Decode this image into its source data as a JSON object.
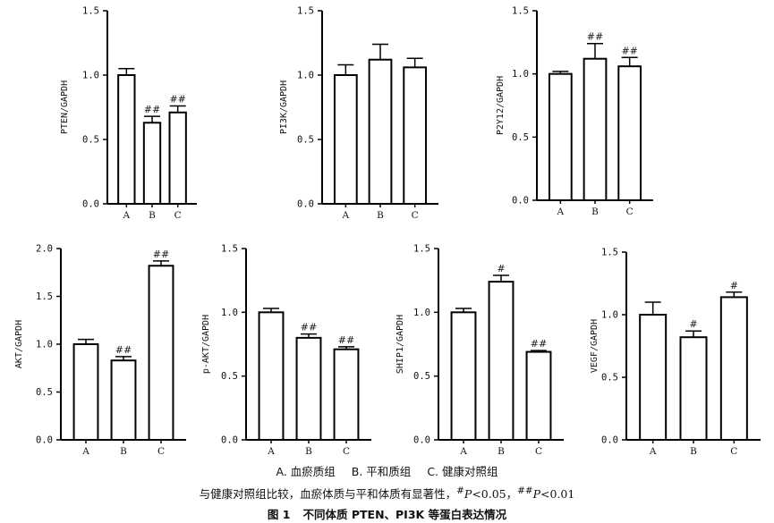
{
  "chart_data": [
    {
      "type": "bar",
      "ylabel": "PTEN/GAPDH",
      "categories": [
        "A",
        "B",
        "C"
      ],
      "ylim": [
        0,
        1.5
      ],
      "yticks": [
        "0.0",
        "0.5",
        "1.0",
        "1.5"
      ],
      "values": [
        1.0,
        0.63,
        0.71
      ],
      "errors": [
        0.05,
        0.05,
        0.05
      ],
      "annotations": [
        "",
        "##",
        "##"
      ]
    },
    {
      "type": "bar",
      "ylabel": "PI3K/GAPDH",
      "categories": [
        "A",
        "B",
        "C"
      ],
      "ylim": [
        0,
        1.5
      ],
      "yticks": [
        "0.0",
        "0.5",
        "1.0",
        "1.5"
      ],
      "values": [
        1.0,
        1.12,
        1.06
      ],
      "errors": [
        0.08,
        0.12,
        0.07
      ],
      "annotations": [
        "",
        "",
        ""
      ]
    },
    {
      "type": "bar",
      "ylabel": "P2Y12/GAPDH",
      "categories": [
        "A",
        "B",
        "C"
      ],
      "ylim": [
        0,
        1.5
      ],
      "yticks": [
        "0.0",
        "0.5",
        "1.0",
        "1.5"
      ],
      "values": [
        1.0,
        1.12,
        1.06
      ],
      "errors": [
        0.02,
        0.12,
        0.07
      ],
      "annotations": [
        "",
        "##",
        "##"
      ]
    },
    {
      "type": "bar",
      "ylabel": "AKT/GAPDH",
      "categories": [
        "A",
        "B",
        "C"
      ],
      "ylim": [
        0,
        2.0
      ],
      "yticks": [
        "0.0",
        "0.5",
        "1.0",
        "1.5",
        "2.0"
      ],
      "values": [
        1.0,
        0.83,
        1.82
      ],
      "errors": [
        0.05,
        0.04,
        0.05
      ],
      "annotations": [
        "",
        "##",
        "##"
      ]
    },
    {
      "type": "bar",
      "ylabel": "p-AKT/GAPDH",
      "categories": [
        "A",
        "B",
        "C"
      ],
      "ylim": [
        0,
        1.5
      ],
      "yticks": [
        "0.0",
        "0.5",
        "1.0",
        "1.5"
      ],
      "values": [
        1.0,
        0.8,
        0.71
      ],
      "errors": [
        0.03,
        0.03,
        0.02
      ],
      "annotations": [
        "",
        "##",
        "##"
      ]
    },
    {
      "type": "bar",
      "ylabel": "SHIP1/GAPDH",
      "categories": [
        "A",
        "B",
        "C"
      ],
      "ylim": [
        0,
        1.5
      ],
      "yticks": [
        "0.0",
        "0.5",
        "1.0",
        "1.5"
      ],
      "values": [
        1.0,
        1.24,
        0.69
      ],
      "errors": [
        0.03,
        0.05,
        0.01
      ],
      "annotations": [
        "",
        "#",
        "##"
      ]
    },
    {
      "type": "bar",
      "ylabel": "VEGF/GAPDH",
      "categories": [
        "A",
        "B",
        "C"
      ],
      "ylim": [
        0,
        1.5
      ],
      "yticks": [
        "0.0",
        "0.5",
        "1.0",
        "1.5"
      ],
      "values": [
        1.0,
        0.82,
        1.14
      ],
      "errors": [
        0.1,
        0.05,
        0.04
      ],
      "annotations": [
        "",
        "#",
        "#"
      ]
    }
  ],
  "legend": {
    "a": "A. 血瘀质组",
    "b": "B. 平和质组",
    "c": "C. 健康对照组"
  },
  "note": {
    "main": "与健康对照组比较，血瘀体质与平和体质有显著性，",
    "sig1_mark": "#",
    "p_symbol": "P",
    "sig1_text": "<0.05，",
    "sig2_mark": "##",
    "sig2_text": "<0.01"
  },
  "figure_title": {
    "label": "图 1",
    "text": "不同体质 PTEN、PI3K 等蛋白表达情况"
  }
}
